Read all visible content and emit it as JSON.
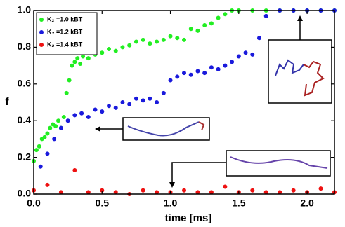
{
  "chart_data": {
    "type": "scatter",
    "xlabel": "time [ms]",
    "ylabel": "f",
    "xlim": [
      0,
      2.2
    ],
    "ylim": [
      0,
      1
    ],
    "xticks": [
      {
        "value": 0,
        "label": "0.0"
      },
      {
        "value": 0.5,
        "label": "0.5"
      },
      {
        "value": 1,
        "label": "1.0"
      },
      {
        "value": 1.5,
        "label": "1.5"
      },
      {
        "value": 2,
        "label": "2.0"
      }
    ],
    "yticks": [
      {
        "value": 0,
        "label": "0.0"
      },
      0.2,
      0.4,
      0.6,
      0.8,
      {
        "value": 1,
        "label": "1.0"
      }
    ],
    "legend": "upper left",
    "series": [
      {
        "name": "K₂ =1.0 kBT",
        "color": "#22ee22",
        "x": [
          0,
          0.02,
          0.04,
          0.06,
          0.08,
          0.1,
          0.12,
          0.14,
          0.16,
          0.18,
          0.2,
          0.22,
          0.24,
          0.26,
          0.28,
          0.3,
          0.32,
          0.34,
          0.36,
          0.4,
          0.45,
          0.5,
          0.55,
          0.6,
          0.65,
          0.7,
          0.75,
          0.8,
          0.85,
          0.9,
          0.95,
          1.0,
          1.05,
          1.1,
          1.15,
          1.2,
          1.25,
          1.3,
          1.35,
          1.4,
          1.45,
          1.5,
          1.6,
          1.7,
          1.8,
          1.9,
          2.0,
          2.1,
          2.2
        ],
        "values": [
          0.18,
          0.24,
          0.26,
          0.3,
          0.31,
          0.33,
          0.36,
          0.38,
          0.37,
          0.4,
          0.36,
          0.42,
          0.55,
          0.62,
          0.7,
          0.72,
          0.74,
          0.71,
          0.75,
          0.74,
          0.76,
          0.77,
          0.79,
          0.78,
          0.8,
          0.81,
          0.83,
          0.84,
          0.82,
          0.83,
          0.84,
          0.86,
          0.85,
          0.84,
          0.9,
          0.89,
          0.92,
          0.93,
          0.96,
          0.98,
          1.0,
          1.0,
          1.0,
          1.0,
          1.0,
          1.0,
          1.0,
          1.0,
          1.0
        ]
      },
      {
        "name": "K₂ =1.2 kBT",
        "color": "#1a1adc",
        "x": [
          0.05,
          0.1,
          0.15,
          0.2,
          0.25,
          0.3,
          0.35,
          0.4,
          0.45,
          0.5,
          0.55,
          0.6,
          0.65,
          0.7,
          0.75,
          0.8,
          0.85,
          0.9,
          0.95,
          1.0,
          1.05,
          1.1,
          1.15,
          1.2,
          1.25,
          1.3,
          1.35,
          1.4,
          1.45,
          1.5,
          1.55,
          1.6,
          1.65,
          1.7,
          1.8,
          1.9,
          2.0,
          2.1,
          2.2
        ],
        "values": [
          0.15,
          0.22,
          0.3,
          0.36,
          0.4,
          0.43,
          0.44,
          0.42,
          0.46,
          0.45,
          0.48,
          0.47,
          0.5,
          0.49,
          0.52,
          0.51,
          0.52,
          0.5,
          0.55,
          0.62,
          0.64,
          0.66,
          0.65,
          0.67,
          0.66,
          0.69,
          0.68,
          0.7,
          0.72,
          0.75,
          0.77,
          0.76,
          0.85,
          0.97,
          1.0,
          1.0,
          1.0,
          1.0,
          1.0
        ]
      },
      {
        "name": "K₂ =1.4 kBT",
        "color": "#ee1111",
        "x": [
          0,
          0.1,
          0.2,
          0.3,
          0.4,
          0.5,
          0.6,
          0.7,
          0.8,
          0.9,
          1.0,
          1.1,
          1.2,
          1.3,
          1.4,
          1.5,
          1.6,
          1.7,
          1.8,
          1.9,
          2.0,
          2.1,
          2.2
        ],
        "values": [
          0.02,
          0.05,
          0.01,
          0.13,
          0.01,
          0.02,
          0.01,
          0.0,
          0.02,
          0.01,
          0.01,
          0.02,
          0.01,
          0.01,
          0.04,
          0.01,
          0.02,
          0.01,
          0.01,
          0.02,
          0.01,
          0.03,
          0.01
        ]
      }
    ]
  }
}
